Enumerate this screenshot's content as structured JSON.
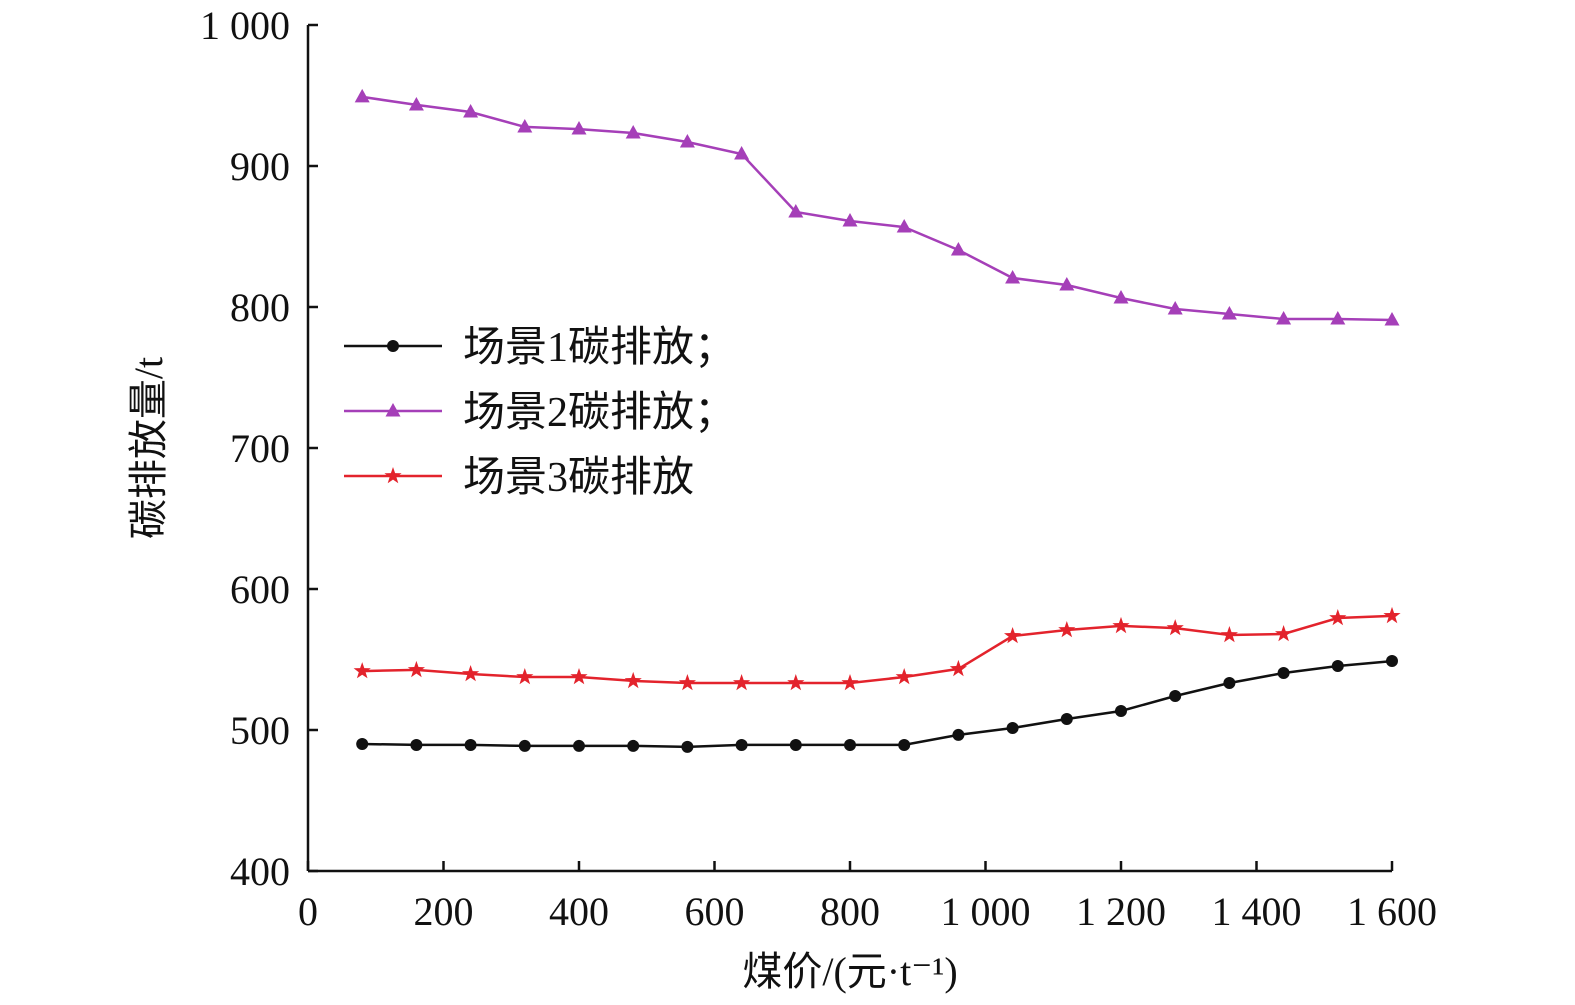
{
  "chart_data": {
    "type": "line",
    "title": "",
    "xlabel": "煤价/(元·t⁻¹)",
    "ylabel": "碳排放量/t",
    "xlim": [
      0,
      1600
    ],
    "ylim": [
      400,
      1000
    ],
    "x_ticks": [
      0,
      200,
      400,
      600,
      800,
      1000,
      1200,
      1400,
      1600
    ],
    "x_tick_labels": [
      "0",
      "200",
      "400",
      "600",
      "800",
      "1 000",
      "1 200",
      "1 400",
      "1 600"
    ],
    "y_ticks": [
      400,
      500,
      600,
      700,
      800,
      900,
      1000
    ],
    "y_tick_labels": [
      "400",
      "500",
      "600",
      "700",
      "800",
      "900",
      "1 000"
    ],
    "grid": false,
    "legend_position": "center-left",
    "x": [
      80,
      160,
      240,
      320,
      400,
      480,
      560,
      640,
      720,
      800,
      880,
      960,
      1040,
      1120,
      1200,
      1280,
      1360,
      1440,
      1520,
      1600
    ],
    "series": [
      {
        "name": "场景1碳排放；",
        "color": "#111111",
        "marker": "circle",
        "values": [
          490.1,
          489.4,
          489.4,
          488.7,
          488.7,
          488.7,
          488.0,
          489.4,
          489.4,
          489.4,
          489.4,
          496.5,
          501.4,
          507.8,
          513.5,
          524.1,
          533.3,
          540.4,
          545.4,
          548.9
        ]
      },
      {
        "name": "场景2碳排放；",
        "color": "#a53fb8",
        "marker": "triangle",
        "values": [
          949.0,
          943.3,
          938.3,
          927.7,
          926.2,
          923.4,
          917.0,
          908.5,
          867.4,
          861.0,
          856.7,
          840.4,
          820.6,
          815.6,
          806.4,
          798.6,
          795.0,
          791.5,
          791.5,
          790.8
        ]
      },
      {
        "name": "场景3碳排放",
        "color": "#e3232c",
        "marker": "star",
        "values": [
          541.8,
          542.6,
          539.7,
          537.6,
          537.6,
          534.8,
          533.3,
          533.3,
          533.3,
          533.3,
          537.6,
          543.3,
          566.7,
          570.9,
          573.8,
          572.3,
          567.4,
          568.1,
          579.4,
          580.9
        ]
      }
    ]
  }
}
